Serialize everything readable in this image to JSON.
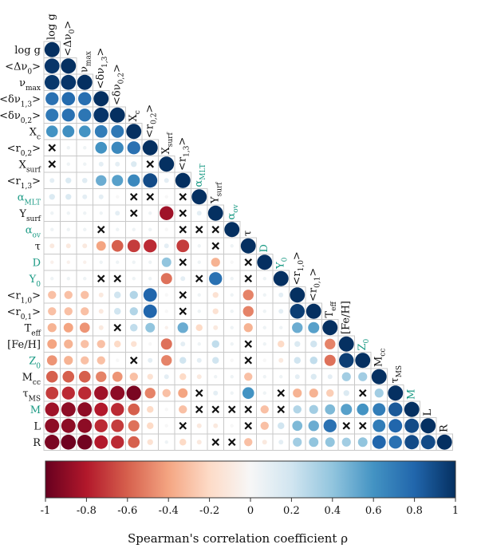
{
  "chart_data": {
    "type": "heatmap",
    "title": "",
    "variables": [
      "log g",
      "<Δν₀>",
      "νmax",
      "<δν1,3>",
      "<δν0,2>",
      "Xc",
      "<r0,2>",
      "Xsurf",
      "<r1,3>",
      "αMLT",
      "Ysurf",
      "αov",
      "τ",
      "D",
      "Y0",
      "<r1,0>",
      "<r0,1>",
      "Teff",
      "[Fe/H]",
      "Z0",
      "Mcc",
      "τMS",
      "M",
      "L",
      "R"
    ],
    "accent_variables": [
      "αMLT",
      "αov",
      "D",
      "Y0",
      "Z0",
      "M"
    ],
    "matrix": [
      [
        1
      ],
      [
        0.98,
        1
      ],
      [
        0.97,
        0.98,
        1
      ],
      [
        0.75,
        0.78,
        0.76,
        1
      ],
      [
        0.72,
        0.75,
        0.73,
        0.98,
        1
      ],
      [
        0.6,
        0.62,
        0.6,
        0.7,
        0.72,
        1
      ],
      [
        0,
        0.05,
        0.05,
        0.6,
        0.65,
        0.75,
        1
      ],
      [
        0,
        0.05,
        0.05,
        0.1,
        0.1,
        0.15,
        0,
        1
      ],
      [
        0.1,
        0.15,
        0.12,
        0.5,
        0.55,
        0.65,
        0.9,
        0.1,
        1
      ],
      [
        0.15,
        0.15,
        0.1,
        0.1,
        0,
        0.05,
        0.1,
        0,
        0.1,
        1
      ],
      [
        0.05,
        0.05,
        0.05,
        0.05,
        0.1,
        0,
        0.05,
        -0.85,
        0.05,
        0.1,
        1
      ],
      [
        0.05,
        0.05,
        0.05,
        0,
        0.05,
        0.05,
        0.05,
        0,
        0,
        0.05,
        0.05,
        1
      ],
      [
        -0.1,
        -0.1,
        -0.1,
        -0.4,
        -0.6,
        -0.7,
        -0.75,
        0.1,
        -0.7,
        0.05,
        0.1,
        0.05,
        1
      ],
      [
        -0.05,
        -0.05,
        -0.05,
        0.05,
        0.05,
        0.05,
        0.05,
        0.4,
        0,
        0.05,
        -0.35,
        0,
        0.05,
        1
      ],
      [
        0.05,
        0.05,
        0.05,
        0,
        0,
        0.05,
        0.05,
        -0.55,
        0.1,
        0.05,
        0.75,
        0.05,
        -0.05,
        0.05,
        1
      ],
      [
        -0.3,
        -0.3,
        -0.3,
        -0.1,
        0.2,
        0.3,
        0.8,
        0,
        0.45,
        0.05,
        -0.15,
        0.05,
        -0.5,
        0.05,
        0.1,
        1
      ],
      [
        -0.3,
        -0.3,
        -0.3,
        -0.1,
        0.2,
        0.3,
        0.8,
        0,
        0.45,
        0.05,
        -0.15,
        0.05,
        -0.5,
        0.05,
        0.1,
        0.95,
        1
      ],
      [
        -0.35,
        -0.4,
        -0.45,
        -0.1,
        0,
        0.25,
        0.4,
        -0.05,
        0.5,
        -0.2,
        -0.1,
        0.05,
        -0.35,
        0.05,
        0.05,
        0.5,
        0.55,
        1
      ],
      [
        -0.4,
        -0.35,
        -0.3,
        -0.3,
        -0.2,
        -0.15,
        0,
        -0.55,
        0.1,
        0.05,
        0.25,
        0.05,
        -0.15,
        0.05,
        -0.2,
        0.15,
        0.2,
        -0.5,
        1
      ],
      [
        -0.45,
        -0.35,
        -0.3,
        -0.3,
        0,
        -0.1,
        0.1,
        -0.5,
        0.2,
        0.1,
        0.2,
        0,
        -0.2,
        0,
        -0.1,
        0.2,
        0.25,
        -0.55,
        0.95,
        1
      ],
      [
        -0.6,
        -0.6,
        -0.6,
        -0.5,
        -0.45,
        -0.3,
        -0.15,
        0.1,
        -0.2,
        -0.1,
        0.05,
        0.05,
        -0.3,
        0.05,
        0.05,
        0.1,
        0.15,
        0.1,
        0.35,
        0.35,
        1
      ],
      [
        -0.7,
        -0.75,
        -0.75,
        -0.85,
        -0.9,
        -0.95,
        -0.5,
        -0.3,
        -0.4,
        -0.1,
        0.1,
        0.05,
        0.6,
        0.05,
        -0.1,
        -0.35,
        -0.35,
        -0.25,
        0.15,
        0.2,
        0.35,
        1
      ],
      [
        -0.85,
        -0.9,
        -0.9,
        -0.8,
        -0.75,
        -0.6,
        -0.2,
        0,
        -0.3,
        -0.1,
        0,
        0,
        -0.35,
        -0.3,
        0,
        0.3,
        0.35,
        0.45,
        0.55,
        0.6,
        0.7,
        0.85,
        1
      ],
      [
        -0.9,
        -0.9,
        -0.9,
        -0.75,
        -0.7,
        -0.55,
        -0.2,
        0,
        -0.2,
        -0.1,
        -0.1,
        0,
        -0.5,
        -0.3,
        0.2,
        0.45,
        0.5,
        0.75,
        0,
        0.05,
        0.7,
        0.8,
        0.9,
        1
      ],
      [
        -0.95,
        -0.98,
        -0.97,
        -0.8,
        -0.75,
        -0.6,
        -0.15,
        0.05,
        -0.2,
        -0.1,
        -0.05,
        0.05,
        -0.3,
        -0.1,
        0.1,
        0.35,
        0.4,
        0.4,
        0.35,
        0.4,
        0.8,
        0.75,
        0.9,
        0.9,
        1
      ]
    ],
    "crosses": [
      [
        6,
        0
      ],
      [
        7,
        0
      ],
      [
        7,
        6
      ],
      [
        9,
        5
      ],
      [
        9,
        6
      ],
      [
        9,
        8
      ],
      [
        10,
        5
      ],
      [
        10,
        8
      ],
      [
        11,
        3
      ],
      [
        11,
        8
      ],
      [
        11,
        9
      ],
      [
        11,
        10
      ],
      [
        12,
        10
      ],
      [
        13,
        8
      ],
      [
        13,
        12
      ],
      [
        14,
        3
      ],
      [
        14,
        4
      ],
      [
        14,
        9
      ],
      [
        14,
        12
      ],
      [
        15,
        8
      ],
      [
        16,
        8
      ],
      [
        17,
        4
      ],
      [
        18,
        12
      ],
      [
        19,
        5
      ],
      [
        19,
        12
      ],
      [
        21,
        9
      ],
      [
        21,
        14
      ],
      [
        21,
        19
      ],
      [
        22,
        9
      ],
      [
        22,
        10
      ],
      [
        22,
        11
      ],
      [
        22,
        12
      ],
      [
        22,
        14
      ],
      [
        23,
        8
      ],
      [
        23,
        12
      ],
      [
        23,
        18
      ],
      [
        23,
        19
      ],
      [
        24,
        10
      ],
      [
        24,
        11
      ]
    ],
    "colorbar": {
      "ticks": [
        "-1",
        "-0.8",
        "-0.6",
        "-0.4",
        "-0.2",
        "0",
        "0.2",
        "0.4",
        "0.6",
        "0.8",
        "1"
      ],
      "label": "Spearman's correlation coefficient ρ",
      "range": [
        -1,
        1
      ]
    },
    "colors": {
      "strong_negative": "#67001f",
      "negative": "#d6604d",
      "weak_negative": "#fddbc7",
      "neutral": "#f7f7f7",
      "weak_positive": "#d1e5f0",
      "positive": "#4393c3",
      "strong_positive": "#053061",
      "accent_label": "#1a9a84",
      "grid": "#c8c8c8"
    }
  }
}
